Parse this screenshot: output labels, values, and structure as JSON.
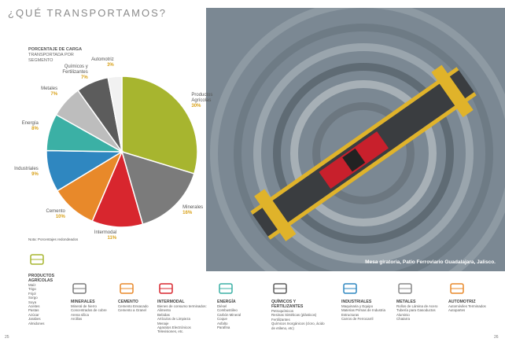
{
  "header": {
    "title": "¿QUÉ TRANSPORTAMOS?"
  },
  "chart_data": {
    "type": "pie",
    "title": "PORCENTAJE DE CARGA",
    "subtitle": "TRANSPORTADA POR SEGMENTO",
    "categories": [
      "Productos Agrícolas",
      "Minerales",
      "Intermodal",
      "Cemento",
      "Industriales",
      "Energía",
      "Metales",
      "Químicos y Fertilizantes",
      "Automotriz"
    ],
    "values": [
      30,
      16,
      11,
      10,
      9,
      8,
      7,
      7,
      3
    ],
    "value_labels": [
      "30%",
      "16%",
      "11%",
      "10%",
      "9%",
      "8%",
      "7%",
      "7%",
      "3%"
    ],
    "colors": [
      "#a7b52f",
      "#7b7b7b",
      "#d8262e",
      "#e8892a",
      "#2f87c0",
      "#3bb0a5",
      "#bdbdbd",
      "#5c5c5c",
      "#f1f1f1"
    ]
  },
  "note": "Nota: Porcentajes redondeados",
  "photo": {
    "caption": "Mesa giratoria, Patio Ferroviario Guadalajara, Jalisco."
  },
  "segments": [
    {
      "title": "PRODUCTOS AGRÍCOLAS",
      "items": [
        "Maíz",
        "Trigo",
        "Frijol",
        "Sorgo",
        "Soya",
        "Aceites",
        "Pastas",
        "Azúcar",
        "Jarabes",
        "Almidones"
      ]
    },
    {
      "title": "MINERALES",
      "items": [
        "Mineral de hierro",
        "Concentrados de cobre",
        "Arena sílica",
        "Arcillas"
      ]
    },
    {
      "title": "CEMENTO",
      "items": [
        "Cemento Ensacado",
        "Cemento a Granel"
      ]
    },
    {
      "title": "INTERMODAL",
      "items": [
        "Bienes de consumo terminados:",
        "Alimento",
        "Bebidas",
        "Artículos de Limpieza",
        "Menaje",
        "Aparatos Electrónicos",
        "Televisiones, etc."
      ]
    },
    {
      "title": "ENERGÍA",
      "items": [
        "Diésel",
        "Combustóleo",
        "Carbón Mineral",
        "Coque",
        "Asfalto",
        "Parafina"
      ]
    },
    {
      "title": "QUÍMICOS Y FERTILIZANTES",
      "items": [
        "Petroquímicos",
        "Resinas Sintéticas (plásticos)",
        "Fertilizantes",
        "Químicos Inorgánicos (cloro, ácido de etileno, etc)"
      ]
    },
    {
      "title": "INDUSTRIALES",
      "items": [
        "Maquinaria y Equipo",
        "Materias Primas de Industria",
        "Estructuras",
        "Carros de Ferrocarril"
      ]
    },
    {
      "title": "METALES",
      "items": [
        "Rollos de Lámina de Acero",
        "Tubería para Gasoductos",
        "Aluminio",
        "Chatarra"
      ]
    },
    {
      "title": "AUTOMOTRIZ",
      "items": [
        "Automóviles Terminados",
        "Autopartes"
      ]
    }
  ],
  "page_numbers": [
    "25",
    "26"
  ]
}
